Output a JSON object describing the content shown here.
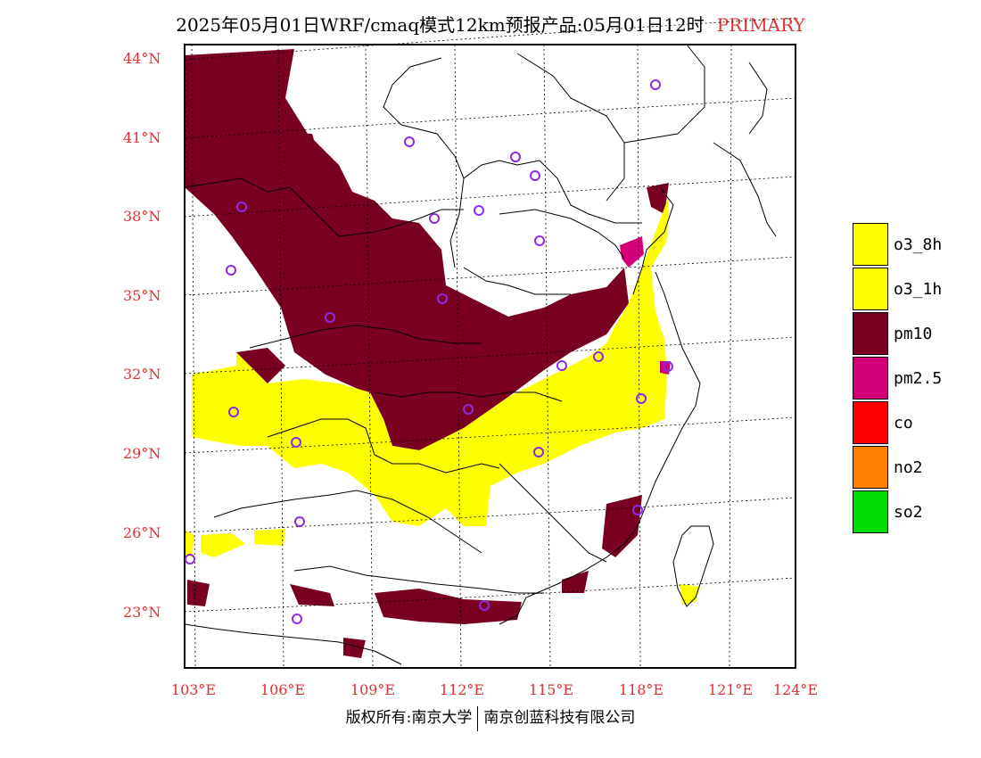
{
  "title": {
    "main": "2025年05月01日WRF/cmaq模式12km预报产品:05月01日12时",
    "tag": "PRIMARY"
  },
  "lat_labels": [
    "44°N",
    "41°N",
    "38°N",
    "35°N",
    "32°N",
    "29°N",
    "26°N",
    "23°N"
  ],
  "lon_labels": [
    "103°E",
    "106°E",
    "109°E",
    "112°E",
    "115°E",
    "118°E",
    "121°E",
    "124°E"
  ],
  "legend": [
    {
      "label": "o3_8h",
      "color": "#ffff00"
    },
    {
      "label": "o3_1h",
      "color": "#ffff00"
    },
    {
      "label": "pm10",
      "color": "#7a0022"
    },
    {
      "label": "pm2.5",
      "color": "#d4007a"
    },
    {
      "label": "co",
      "color": "#ff0000"
    },
    {
      "label": "no2",
      "color": "#ff7f00"
    },
    {
      "label": "so2",
      "color": "#00dd00"
    }
  ],
  "footer": {
    "left": "版权所有:南京大学",
    "right": "南京创蓝科技有限公司"
  },
  "colors": {
    "pm10": "#7a0022",
    "o3": "#ffff00",
    "pm25": "#d4007a",
    "marker": "#8a2be2",
    "label": "#e03030"
  }
}
